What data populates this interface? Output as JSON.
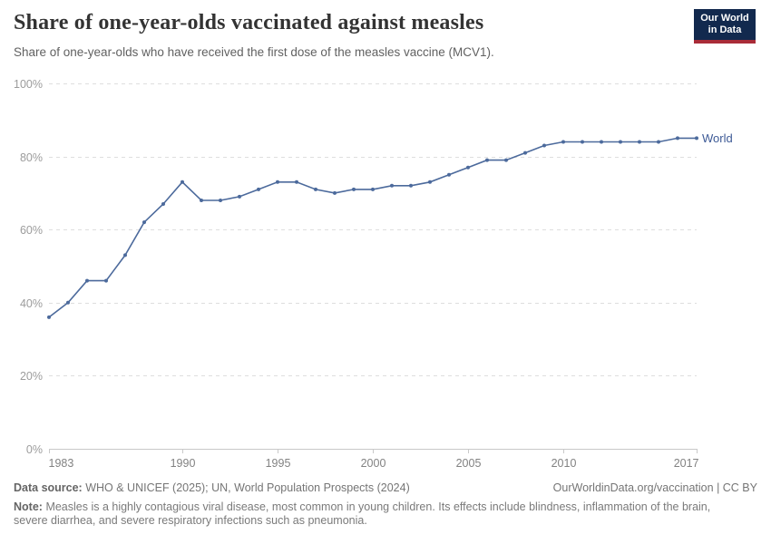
{
  "header": {
    "title": "Share of one-year-olds vaccinated against measles",
    "subtitle": "Share of one-year-olds who have received the first dose of the measles vaccine (MCV1).",
    "logo": {
      "line1": "Our World",
      "line2": "in Data",
      "bg_color": "#12294e",
      "bar_color": "#a92c38"
    }
  },
  "chart_data": {
    "type": "line",
    "title": "Share of one-year-olds vaccinated against measles",
    "xlabel": "",
    "ylabel": "",
    "y_format": "percent",
    "ylim": [
      0,
      100
    ],
    "yticks": [
      0,
      20,
      40,
      60,
      80,
      100
    ],
    "xticks": [
      1983,
      1990,
      1995,
      2000,
      2005,
      2010,
      2017
    ],
    "grid": "horizontal dashed",
    "legend": "line-end label",
    "line_color": "#4C6A9C",
    "label_color": "#3d5a96",
    "x": [
      1983,
      1984,
      1985,
      1986,
      1987,
      1988,
      1989,
      1990,
      1991,
      1992,
      1993,
      1994,
      1995,
      1996,
      1997,
      1998,
      1999,
      2000,
      2001,
      2002,
      2003,
      2004,
      2005,
      2006,
      2007,
      2008,
      2009,
      2010,
      2011,
      2012,
      2013,
      2014,
      2015,
      2016,
      2017
    ],
    "series": [
      {
        "name": "World",
        "values": [
          36,
          40,
          46,
          46,
          53,
          62,
          67,
          73,
          68,
          68,
          69,
          71,
          73,
          73,
          71,
          70,
          71,
          71,
          72,
          72,
          73,
          75,
          77,
          79,
          79,
          81,
          83,
          84,
          84,
          84,
          84,
          84,
          84,
          85,
          85
        ]
      }
    ]
  },
  "footer": {
    "source_label": "Data source:",
    "source_text": "WHO & UNICEF (2025); UN, World Population Prospects (2024)",
    "link": "OurWorldinData.org/vaccination | CC BY",
    "note_label": "Note:",
    "note_lines": [
      "Measles is a highly contagious viral disease, most common in young children. Its effects include blindness, inflammation of the brain,",
      "severe diarrhea, and severe respiratory infections such as pneumonia."
    ]
  }
}
